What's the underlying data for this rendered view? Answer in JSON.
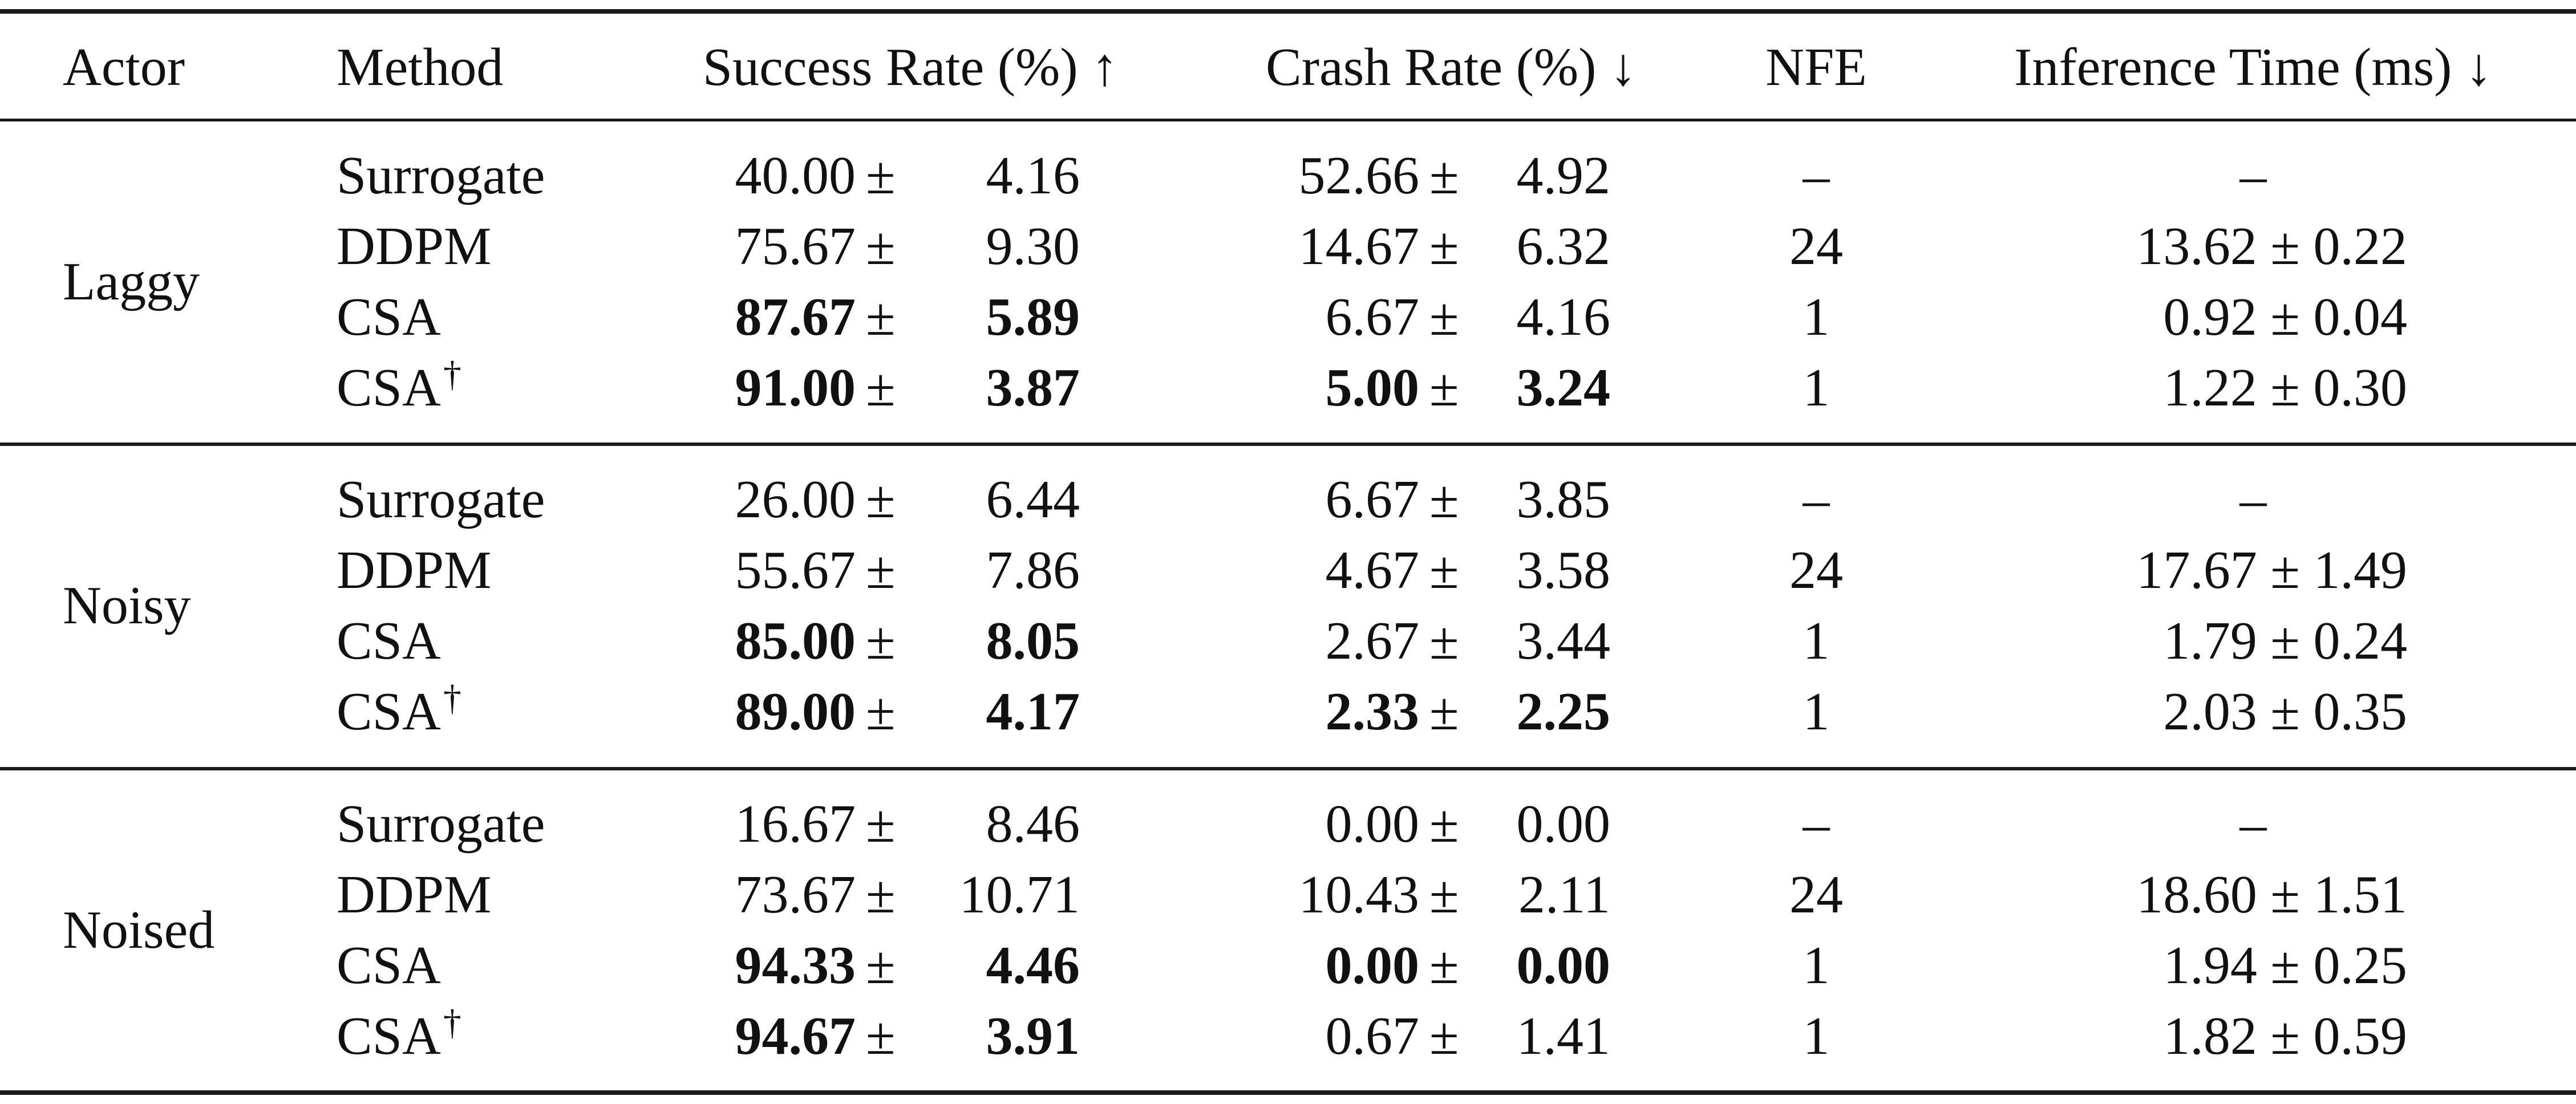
{
  "header": {
    "actor": "Actor",
    "method": "Method",
    "success_rate": "Success Rate (%) ↑",
    "crash_rate": "Crash Rate (%) ↓",
    "nfe": "NFE",
    "inference_time": "Inference Time (ms) ↓"
  },
  "groups": [
    {
      "actor": "Laggy",
      "rows": [
        {
          "method": "Surrogate",
          "dagger": "",
          "sr_mean": "40.00",
          "sr_std": "4.16",
          "sr_bold": false,
          "cr_mean": "52.66",
          "cr_std": "4.92",
          "cr_bold": false,
          "nfe": "–",
          "it": "–"
        },
        {
          "method": "DDPM",
          "dagger": "",
          "sr_mean": "75.67",
          "sr_std": "9.30",
          "sr_bold": false,
          "cr_mean": "14.67",
          "cr_std": "6.32",
          "cr_bold": false,
          "nfe": "24",
          "it": "13.62 ± 0.22"
        },
        {
          "method": "CSA",
          "dagger": "",
          "sr_mean": "87.67",
          "sr_std": "5.89",
          "sr_bold": true,
          "cr_mean": "6.67",
          "cr_std": "4.16",
          "cr_bold": false,
          "nfe": "1",
          "it": "0.92 ± 0.04"
        },
        {
          "method": "CSA",
          "dagger": "†",
          "sr_mean": "91.00",
          "sr_std": "3.87",
          "sr_bold": true,
          "cr_mean": "5.00",
          "cr_std": "3.24",
          "cr_bold": true,
          "nfe": "1",
          "it": "1.22 ± 0.30"
        }
      ]
    },
    {
      "actor": "Noisy",
      "rows": [
        {
          "method": "Surrogate",
          "dagger": "",
          "sr_mean": "26.00",
          "sr_std": "6.44",
          "sr_bold": false,
          "cr_mean": "6.67",
          "cr_std": "3.85",
          "cr_bold": false,
          "nfe": "–",
          "it": "–"
        },
        {
          "method": "DDPM",
          "dagger": "",
          "sr_mean": "55.67",
          "sr_std": "7.86",
          "sr_bold": false,
          "cr_mean": "4.67",
          "cr_std": "3.58",
          "cr_bold": false,
          "nfe": "24",
          "it": "17.67 ± 1.49"
        },
        {
          "method": "CSA",
          "dagger": "",
          "sr_mean": "85.00",
          "sr_std": "8.05",
          "sr_bold": true,
          "cr_mean": "2.67",
          "cr_std": "3.44",
          "cr_bold": false,
          "nfe": "1",
          "it": "1.79 ± 0.24"
        },
        {
          "method": "CSA",
          "dagger": "†",
          "sr_mean": "89.00",
          "sr_std": "4.17",
          "sr_bold": true,
          "cr_mean": "2.33",
          "cr_std": "2.25",
          "cr_bold": true,
          "nfe": "1",
          "it": "2.03 ± 0.35"
        }
      ]
    },
    {
      "actor": "Noised",
      "rows": [
        {
          "method": "Surrogate",
          "dagger": "",
          "sr_mean": "16.67",
          "sr_std": "8.46",
          "sr_bold": false,
          "cr_mean": "0.00",
          "cr_std": "0.00",
          "cr_bold": false,
          "nfe": "–",
          "it": "–"
        },
        {
          "method": "DDPM",
          "dagger": "",
          "sr_mean": "73.67",
          "sr_std": "10.71",
          "sr_bold": false,
          "cr_mean": "10.43",
          "cr_std": "2.11",
          "cr_bold": false,
          "nfe": "24",
          "it": "18.60 ± 1.51"
        },
        {
          "method": "CSA",
          "dagger": "",
          "sr_mean": "94.33",
          "sr_std": "4.46",
          "sr_bold": true,
          "cr_mean": "0.00",
          "cr_std": "0.00",
          "cr_bold": true,
          "nfe": "1",
          "it": "1.94 ± 0.25"
        },
        {
          "method": "CSA",
          "dagger": "†",
          "sr_mean": "94.67",
          "sr_std": "3.91",
          "sr_bold": true,
          "cr_mean": "0.67",
          "cr_std": "1.41",
          "cr_bold": false,
          "nfe": "1",
          "it": "1.82 ± 0.59"
        }
      ]
    }
  ]
}
